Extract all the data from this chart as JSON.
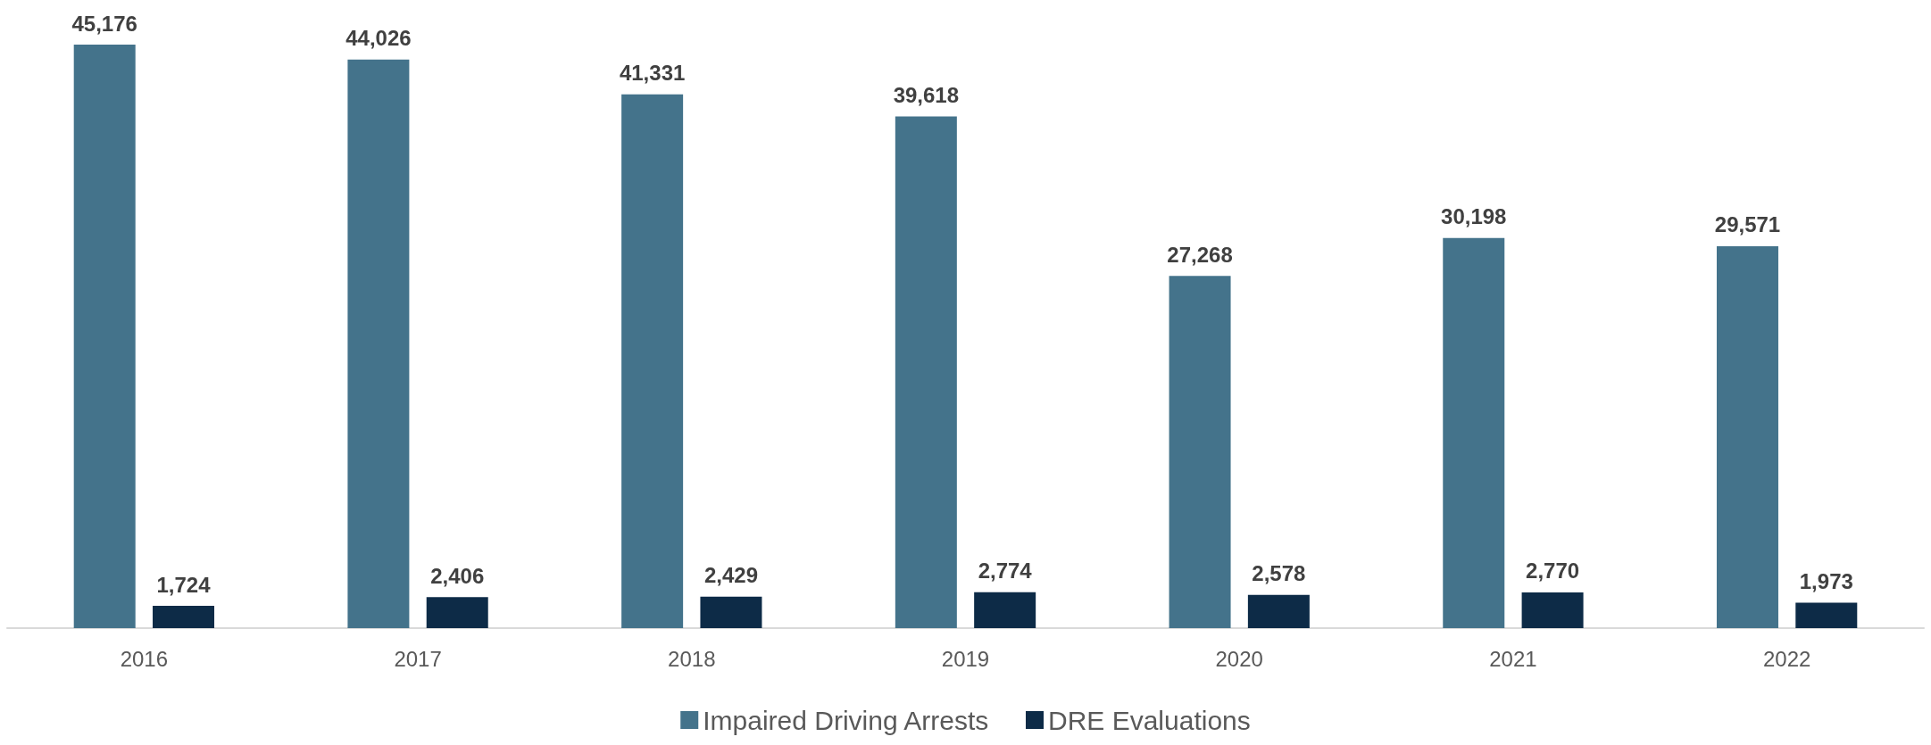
{
  "chart_data": {
    "type": "bar",
    "categories": [
      "2016",
      "2017",
      "2018",
      "2019",
      "2020",
      "2021",
      "2022"
    ],
    "series": [
      {
        "name": "Impaired Driving Arrests",
        "color": "#44738b",
        "values": [
          45176,
          44026,
          41331,
          39618,
          27268,
          30198,
          29571
        ],
        "value_labels": [
          "45,176",
          "44,026",
          "41,331",
          "39,618",
          "27,268",
          "30,198",
          "29,571"
        ]
      },
      {
        "name": "DRE Evaluations",
        "color": "#0d2b47",
        "values": [
          1724,
          2406,
          2429,
          2774,
          2578,
          2770,
          1973
        ],
        "value_labels": [
          "1,724",
          "2,406",
          "2,429",
          "2,774",
          "2,578",
          "2,770",
          "1,973"
        ]
      }
    ],
    "legend": "bottom",
    "grid": false
  }
}
